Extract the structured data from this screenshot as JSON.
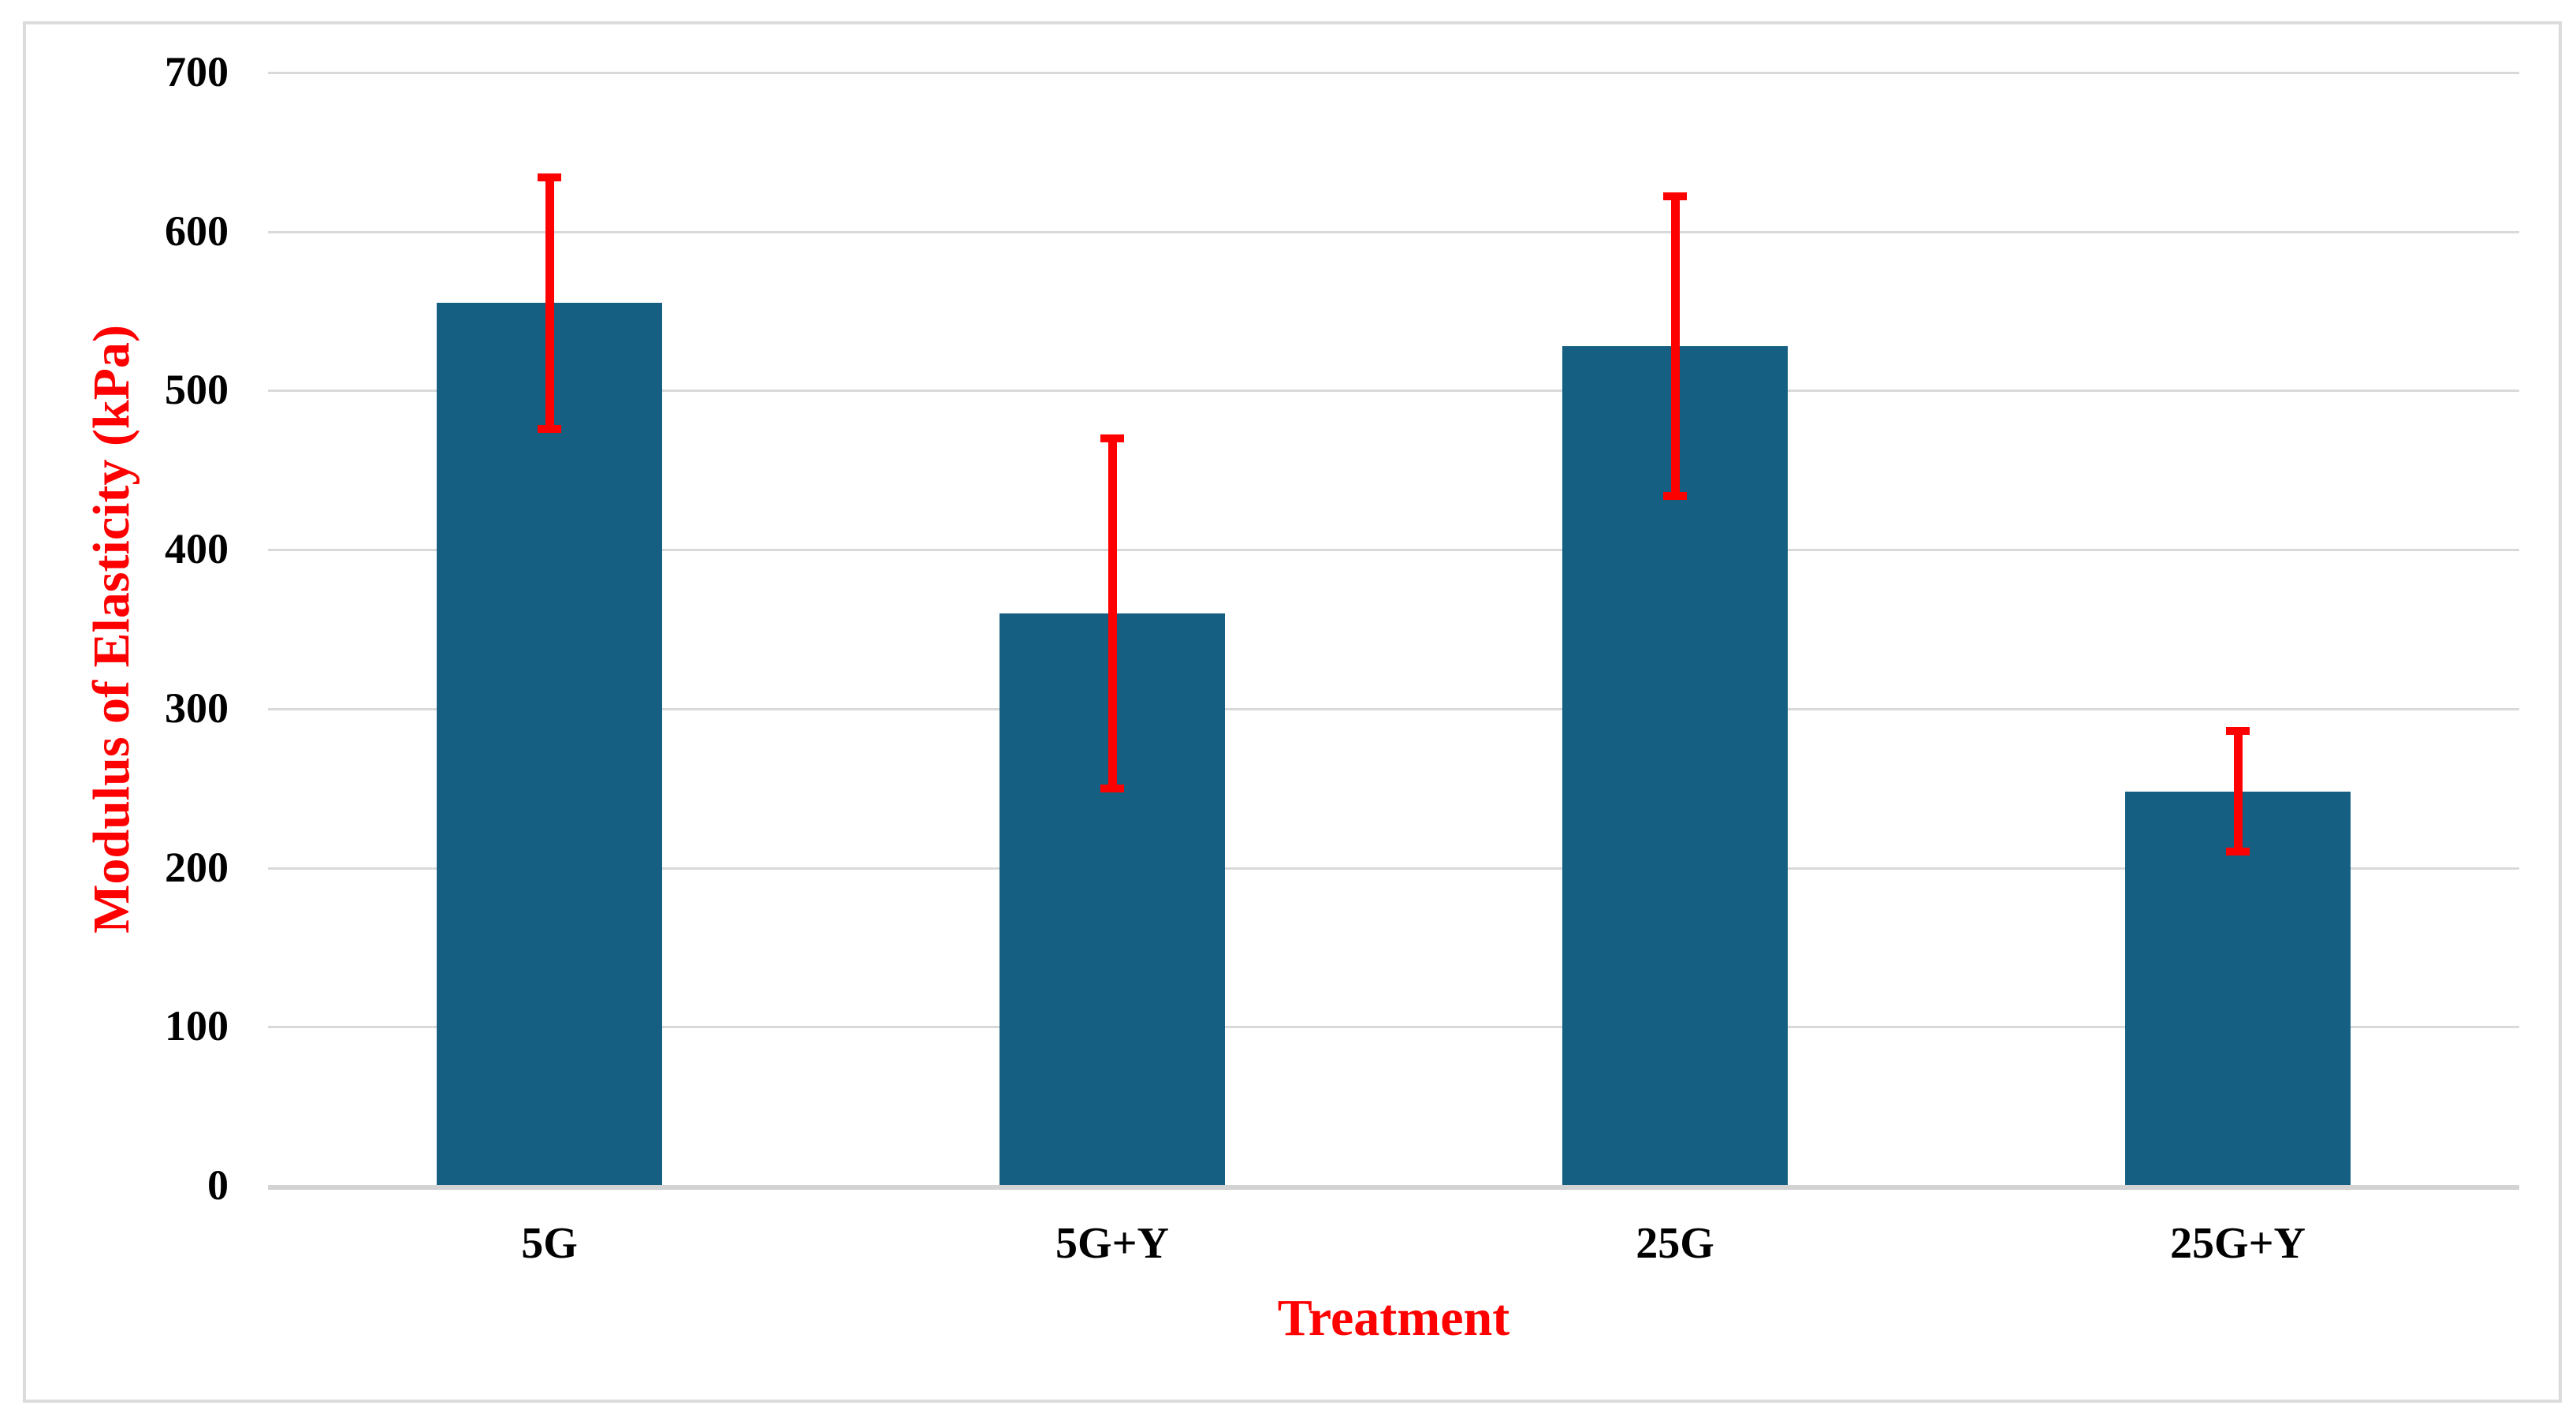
{
  "chart_data": {
    "type": "bar",
    "title": "",
    "categories": [
      "5G",
      "5G+Y",
      "25G",
      "25G+Y"
    ],
    "series": [
      {
        "name": "Modulus of Elasticity",
        "values": [
          555,
          360,
          528,
          248
        ],
        "error_plus": [
          79,
          110,
          94,
          38
        ],
        "error_minus": [
          79,
          110,
          94,
          38
        ]
      }
    ],
    "xlabel": "Treatment",
    "ylabel": "Modulus of Elasticity (kPa)",
    "ylim": [
      0,
      700
    ],
    "yticks": [
      0,
      100,
      200,
      300,
      400,
      500,
      600,
      700
    ],
    "grid": true,
    "legend_position": "none",
    "colors": {
      "bar_fill": "#156082",
      "error_bar": "#FF0000",
      "axis_title_text": "#FF0000",
      "tick_label_text": "#000000",
      "gridline": "#D9D9D9",
      "axis_line": "#D3D3D3",
      "chart_border": "#DBDBDB",
      "background": "#FFFFFF"
    }
  }
}
